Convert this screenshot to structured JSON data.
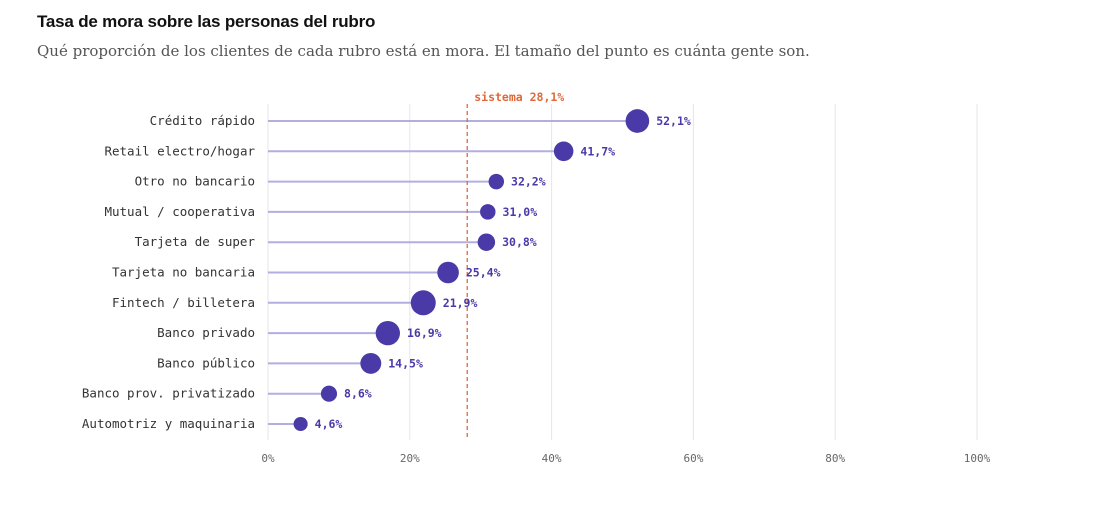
{
  "title": "Tasa de mora sobre las personas del rubro",
  "subtitle": "Qué proporción de los clientes de cada rubro está en mora. El tamaño del punto es cuánta gente son.",
  "colors": {
    "point": "#4a3aa8",
    "stem": "#b3aee0",
    "reference": "#e0683a",
    "grid": "#e6e6e6"
  },
  "chart_data": {
    "type": "scatter",
    "title": "Tasa de mora sobre las personas del rubro",
    "subtitle": "Qué proporción de los clientes de cada rubro está en mora. El tamaño del punto es cuánta gente son.",
    "xlim": [
      0,
      100
    ],
    "xticks": [
      0,
      20,
      40,
      60,
      80,
      100
    ],
    "xtick_labels": [
      "0%",
      "20%",
      "40%",
      "60%",
      "80%",
      "100%"
    ],
    "grid": "vertical",
    "reference": {
      "value": 28.1,
      "label": "sistema 28,1%"
    },
    "categories": [
      "Crédito rápido",
      "Retail electro/hogar",
      "Otro no bancario",
      "Mutual / cooperativa",
      "Tarjeta de super",
      "Tarjeta no bancaria",
      "Fintech / billetera",
      "Banco privado",
      "Banco público",
      "Banco prov. privatizado",
      "Automotriz y maquinaria"
    ],
    "values": [
      52.1,
      41.7,
      32.2,
      31.0,
      30.8,
      25.4,
      21.9,
      16.9,
      14.5,
      8.6,
      4.6
    ],
    "value_labels": [
      "52,1%",
      "41,7%",
      "32,2%",
      "31,0%",
      "30,8%",
      "25,4%",
      "21,9%",
      "16,9%",
      "14,5%",
      "8,6%",
      "4,6%"
    ],
    "point_size": [
      1.0,
      0.7,
      0.4,
      0.4,
      0.55,
      0.85,
      1.1,
      1.05,
      0.8,
      0.45,
      0.3
    ]
  }
}
